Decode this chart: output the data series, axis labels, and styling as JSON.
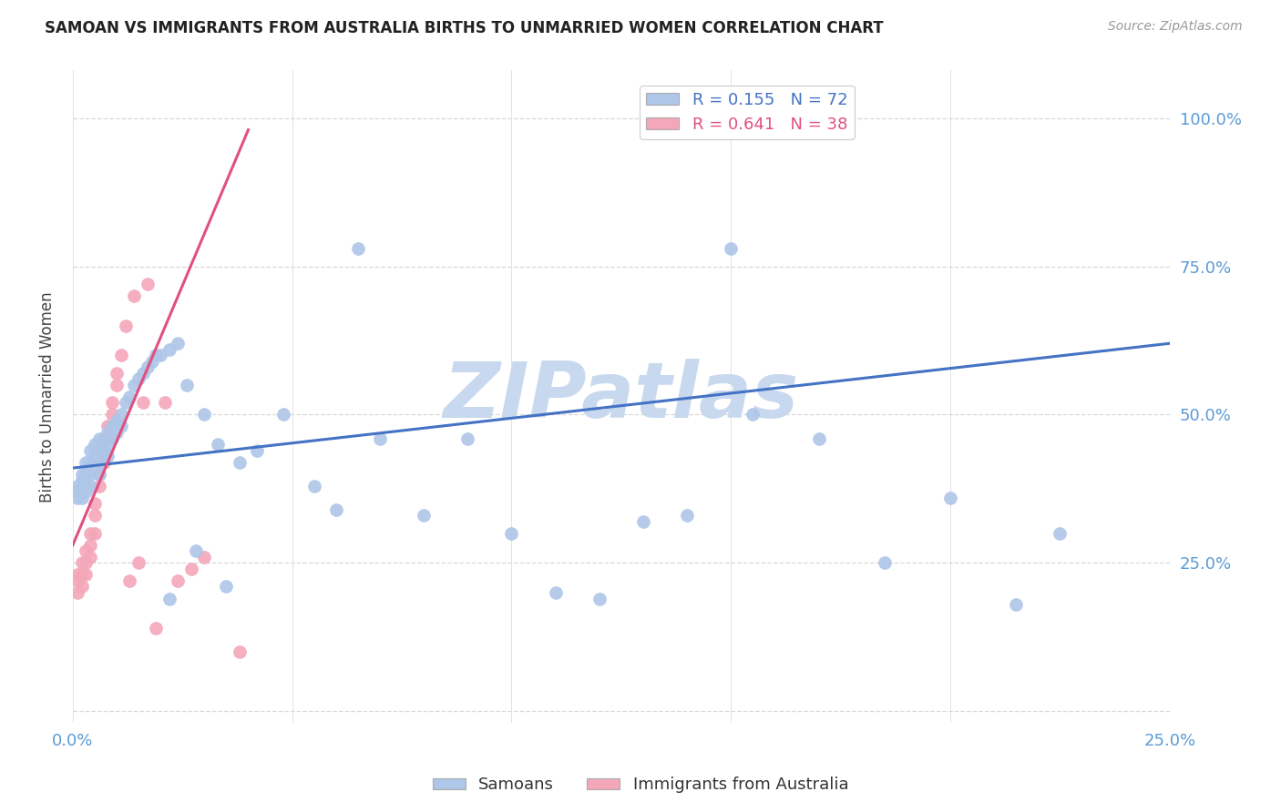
{
  "title": "SAMOAN VS IMMIGRANTS FROM AUSTRALIA BIRTHS TO UNMARRIED WOMEN CORRELATION CHART",
  "source": "Source: ZipAtlas.com",
  "ylabel": "Births to Unmarried Women",
  "xlim": [
    0.0,
    0.25
  ],
  "ylim": [
    -0.02,
    1.08
  ],
  "yticks": [
    0.0,
    0.25,
    0.5,
    0.75,
    1.0
  ],
  "ytick_labels": [
    "",
    "25.0%",
    "50.0%",
    "75.0%",
    "100.0%"
  ],
  "xticks": [
    0.0,
    0.05,
    0.1,
    0.15,
    0.2,
    0.25
  ],
  "xtick_labels": [
    "0.0%",
    "",
    "",
    "",
    "",
    "25.0%"
  ],
  "background_color": "#ffffff",
  "grid_color": "#d8d8d8",
  "title_color": "#222222",
  "axis_color": "#5b9bd5",
  "watermark": "ZIPatlas",
  "watermark_color": "#c8d8ee",
  "legend1_label": "R = 0.155   N = 72",
  "legend2_label": "R = 0.641   N = 38",
  "legend1_color": "#aec6e8",
  "legend2_color": "#f4a7b9",
  "blue_line_color": "#4472c4",
  "pink_line_color": "#e05080",
  "samoans_scatter_color": "#aec6e8",
  "immigrants_scatter_color": "#f4a7b9",
  "samoans_x": [
    0.001,
    0.001,
    0.001,
    0.002,
    0.002,
    0.002,
    0.002,
    0.003,
    0.003,
    0.003,
    0.003,
    0.004,
    0.004,
    0.004,
    0.004,
    0.005,
    0.005,
    0.005,
    0.006,
    0.006,
    0.006,
    0.006,
    0.007,
    0.007,
    0.007,
    0.008,
    0.008,
    0.008,
    0.009,
    0.009,
    0.01,
    0.01,
    0.011,
    0.011,
    0.012,
    0.013,
    0.014,
    0.015,
    0.016,
    0.017,
    0.018,
    0.019,
    0.02,
    0.022,
    0.024,
    0.026,
    0.03,
    0.033,
    0.038,
    0.042,
    0.048,
    0.055,
    0.06,
    0.07,
    0.08,
    0.09,
    0.1,
    0.11,
    0.12,
    0.13,
    0.14,
    0.155,
    0.17,
    0.185,
    0.2,
    0.215,
    0.225,
    0.022,
    0.028,
    0.035,
    0.065,
    0.15
  ],
  "samoans_y": [
    0.38,
    0.37,
    0.36,
    0.4,
    0.39,
    0.38,
    0.36,
    0.42,
    0.4,
    0.38,
    0.37,
    0.44,
    0.42,
    0.4,
    0.38,
    0.45,
    0.43,
    0.41,
    0.46,
    0.44,
    0.42,
    0.4,
    0.46,
    0.44,
    0.43,
    0.47,
    0.45,
    0.43,
    0.48,
    0.46,
    0.49,
    0.47,
    0.5,
    0.48,
    0.52,
    0.53,
    0.55,
    0.56,
    0.57,
    0.58,
    0.59,
    0.6,
    0.6,
    0.61,
    0.62,
    0.55,
    0.5,
    0.45,
    0.42,
    0.44,
    0.5,
    0.38,
    0.34,
    0.46,
    0.33,
    0.46,
    0.3,
    0.2,
    0.19,
    0.32,
    0.33,
    0.5,
    0.46,
    0.25,
    0.36,
    0.18,
    0.3,
    0.19,
    0.27,
    0.21,
    0.78,
    0.78
  ],
  "immigrants_x": [
    0.001,
    0.001,
    0.001,
    0.002,
    0.002,
    0.002,
    0.003,
    0.003,
    0.003,
    0.004,
    0.004,
    0.004,
    0.005,
    0.005,
    0.005,
    0.006,
    0.006,
    0.007,
    0.007,
    0.008,
    0.008,
    0.009,
    0.009,
    0.01,
    0.01,
    0.011,
    0.012,
    0.013,
    0.014,
    0.015,
    0.016,
    0.017,
    0.019,
    0.021,
    0.024,
    0.027,
    0.03,
    0.038
  ],
  "immigrants_y": [
    0.23,
    0.22,
    0.2,
    0.25,
    0.23,
    0.21,
    0.27,
    0.25,
    0.23,
    0.3,
    0.28,
    0.26,
    0.35,
    0.33,
    0.3,
    0.4,
    0.38,
    0.44,
    0.42,
    0.48,
    0.46,
    0.52,
    0.5,
    0.57,
    0.55,
    0.6,
    0.65,
    0.22,
    0.7,
    0.25,
    0.52,
    0.72,
    0.14,
    0.52,
    0.22,
    0.24,
    0.26,
    0.1
  ],
  "blue_line_x": [
    0.0,
    0.25
  ],
  "blue_line_y": [
    0.41,
    0.62
  ],
  "pink_line_x": [
    0.0,
    0.04
  ],
  "pink_line_y": [
    0.28,
    0.98
  ]
}
